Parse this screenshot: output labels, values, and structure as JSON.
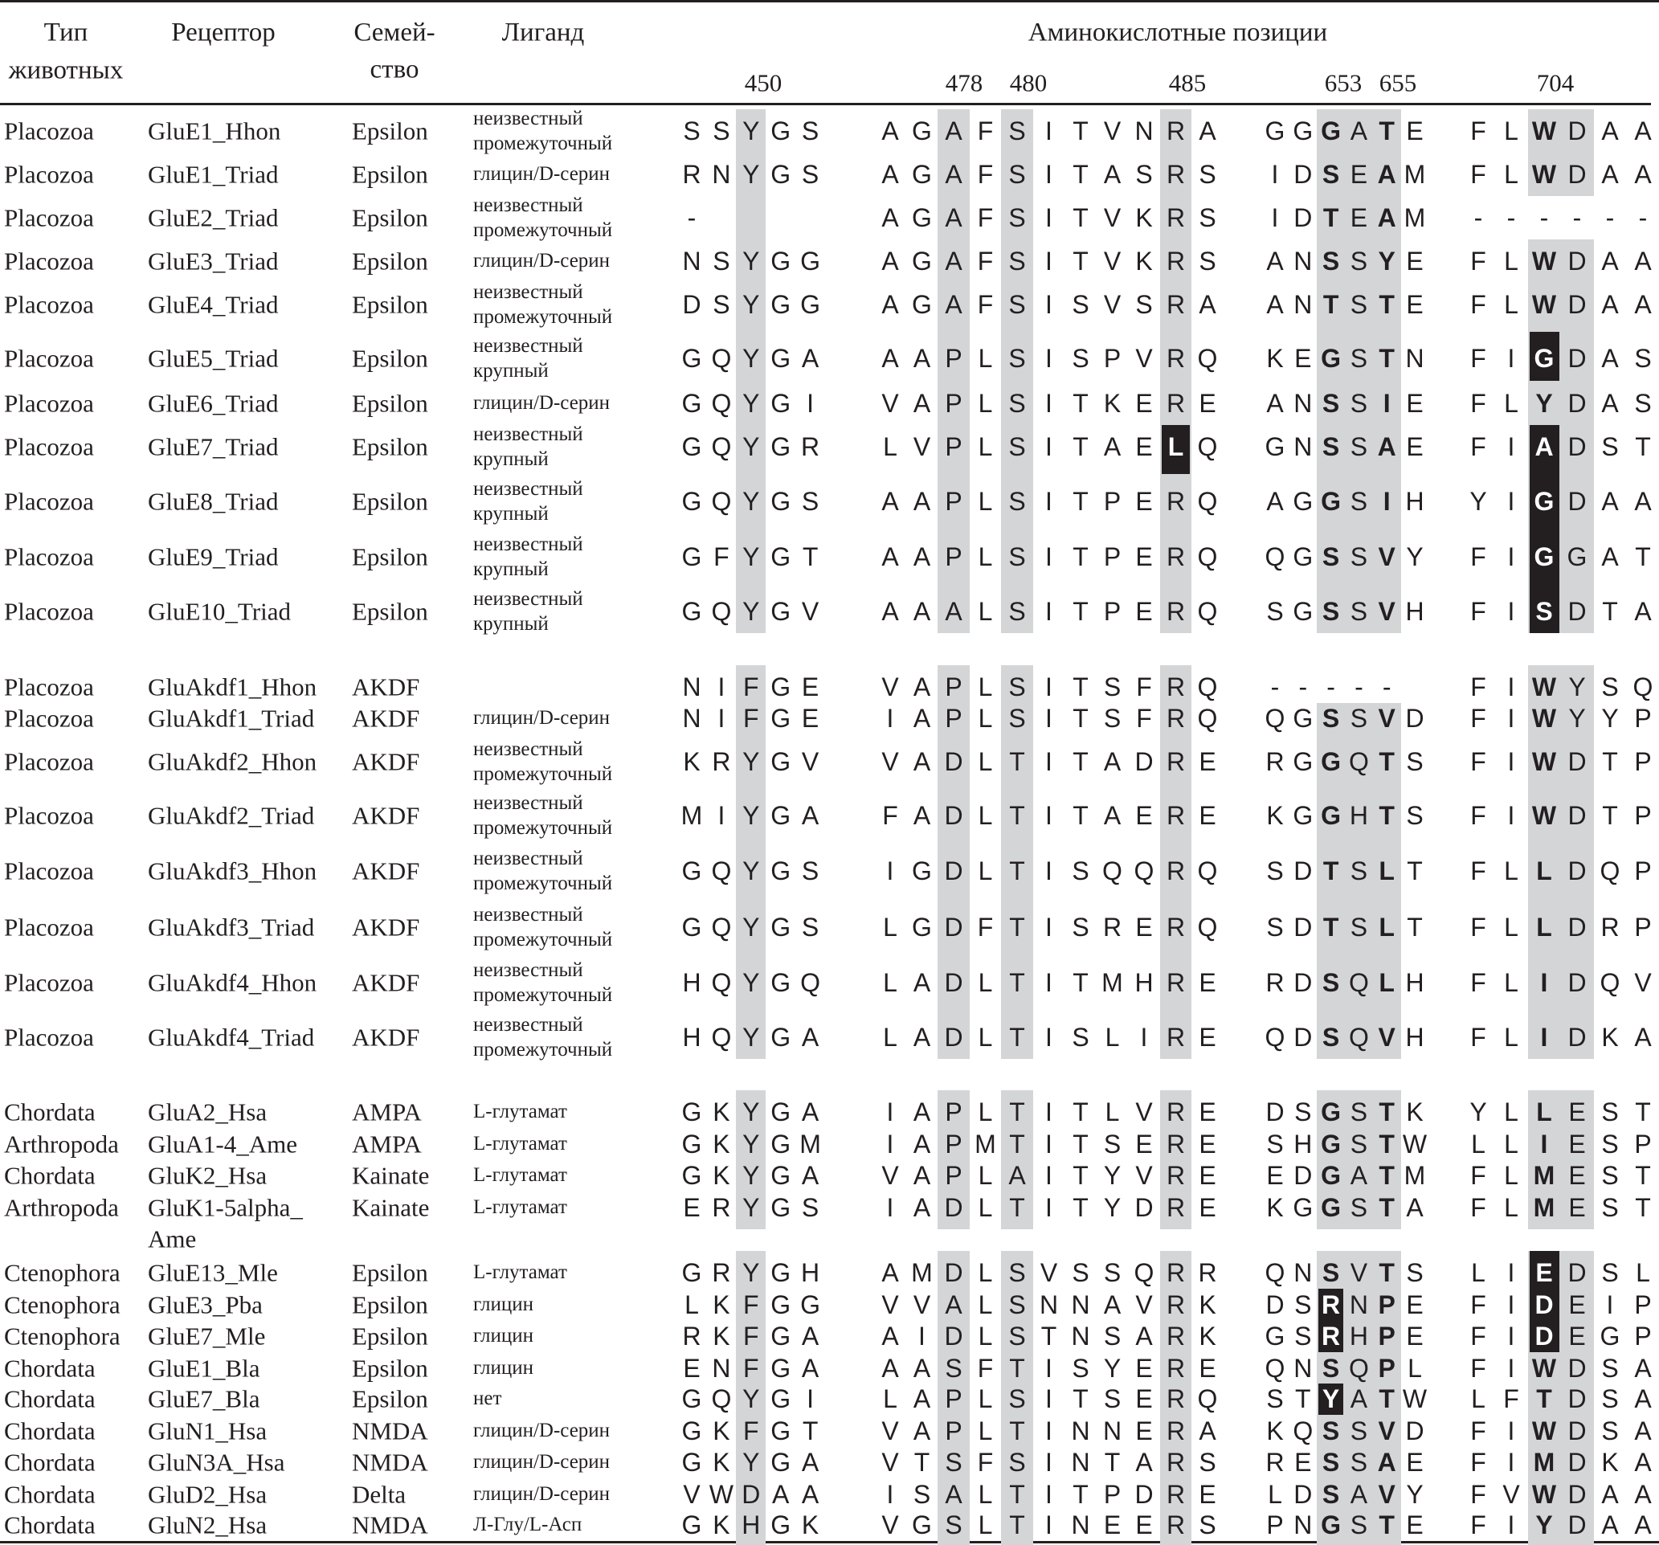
{
  "header": {
    "animal_line1": "Тип",
    "animal_line2": "животных",
    "receptor": "Рецептор",
    "family_line1": "Семей-",
    "family_line2": "ство",
    "ligand": "Лиганд",
    "positions_title": "Аминокислотные позиции",
    "positions": [
      "450",
      "478",
      "480",
      "485",
      "653",
      "655",
      "704"
    ]
  },
  "colors": {
    "shade": "#d4d5d7",
    "highlight": "#231f20",
    "text": "#231f20"
  },
  "rows": [
    {
      "animal": "Placozoa",
      "receptor": "GluE1_Hhon",
      "family": "Epsilon",
      "ligand": [
        "неизвестный",
        "промежуточный"
      ],
      "seq": [
        "SSYGS",
        "AGAFSITVNRA",
        "GGGATE",
        "FLWDAA"
      ],
      "highlight": []
    },
    {
      "animal": "Placozoa",
      "receptor": "GluE1_Triad",
      "family": "Epsilon",
      "ligand": [
        "глицин/D-серин"
      ],
      "seq": [
        "RNYGS",
        "AGAFSITASRS",
        "IDSEAM",
        "FLWDAA"
      ],
      "highlight": []
    },
    {
      "animal": "Placozoa",
      "receptor": "GluE2_Triad",
      "family": "Epsilon",
      "ligand": [
        "неизвестный",
        "промежуточный"
      ],
      "seq": [
        "-",
        "AGAFSITVKRS",
        "IDTEAM",
        "------"
      ],
      "highlight": []
    },
    {
      "animal": "Placozoa",
      "receptor": "GluE3_Triad",
      "family": "Epsilon",
      "ligand": [
        "глицин/D-серин"
      ],
      "seq": [
        "NSYGG",
        "AGAFSITVKRS",
        "ANSSYE",
        "FLWDAA"
      ],
      "highlight": []
    },
    {
      "animal": "Placozoa",
      "receptor": "GluE4_Triad",
      "family": "Epsilon",
      "ligand": [
        "неизвестный",
        "промежуточный"
      ],
      "seq": [
        "DSYGG",
        "AGAFSISVSRA",
        "ANTSTE",
        "FLWDAA"
      ],
      "highlight": []
    },
    {
      "animal": "Placozoa",
      "receptor": "GluE5_Triad",
      "family": "Epsilon",
      "ligand": [
        "неизвестный",
        "крупный"
      ],
      "seq": [
        "GQYGA",
        "AAPLSISPVRQ",
        "KEGSTN",
        "FIGDAS"
      ],
      "highlight": [
        [
          3,
          2
        ]
      ]
    },
    {
      "animal": "Placozoa",
      "receptor": "GluE6_Triad",
      "family": "Epsilon",
      "ligand": [
        "глицин/D-серин"
      ],
      "seq": [
        "GQYGI",
        "VAPLSITKERE",
        "ANSSIE",
        "FLYDAS"
      ],
      "highlight": []
    },
    {
      "animal": "Placozoa",
      "receptor": "GluE7_Triad",
      "family": "Epsilon",
      "ligand": [
        "неизвестный",
        "крупный"
      ],
      "seq": [
        "GQYGR",
        "LVPLSITAELQ",
        "GNSSAE",
        "FIADST"
      ],
      "highlight": [
        [
          1,
          9
        ],
        [
          3,
          2
        ]
      ]
    },
    {
      "animal": "Placozoa",
      "receptor": "GluE8_Triad",
      "family": "Epsilon",
      "ligand": [
        "неизвестный",
        "крупный"
      ],
      "seq": [
        "GQYGS",
        "AAPLSITPERQ",
        "AGGSIH",
        "YIGDAA"
      ],
      "highlight": [
        [
          3,
          2
        ]
      ]
    },
    {
      "animal": "Placozoa",
      "receptor": "GluE9_Triad",
      "family": "Epsilon",
      "ligand": [
        "неизвестный",
        "крупный"
      ],
      "seq": [
        "GFYGT",
        "AAPLSITPERQ",
        "QGSSVY",
        "FIGGAT"
      ],
      "highlight": [
        [
          3,
          2
        ]
      ]
    },
    {
      "animal": "Placozoa",
      "receptor": "GluE10_Triad",
      "family": "Epsilon",
      "ligand": [
        "неизвестный",
        "крупный"
      ],
      "seq": [
        "GQYGV",
        "AAALSITPERQ",
        "SGSSVH",
        "FISDTA"
      ],
      "highlight": [
        [
          3,
          2
        ]
      ]
    },
    {
      "animal": "Placozoa",
      "receptor": "GluAkdf1_Hhon",
      "family": "AKDF",
      "ligand": [],
      "seq": [
        "NIFGE",
        "VAPLSITSFRQ",
        "-----",
        "FIWYSQ"
      ],
      "highlight": []
    },
    {
      "animal": "Placozoa",
      "receptor": "GluAkdf1_Triad",
      "family": "AKDF",
      "ligand": [
        "глицин/D-серин"
      ],
      "seq": [
        "NIFGE",
        "IAPLSITSFRQ",
        "QGSSVD",
        "FIWYYP"
      ],
      "highlight": []
    },
    {
      "animal": "Placozoa",
      "receptor": "GluAkdf2_Hhon",
      "family": "AKDF",
      "ligand": [
        "неизвестный",
        "промежуточный"
      ],
      "seq": [
        "KRYGV",
        "VADLTITADRE",
        "RGGQTS",
        "FIWDTP"
      ],
      "highlight": []
    },
    {
      "animal": "Placozoa",
      "receptor": "GluAkdf2_Triad",
      "family": "AKDF",
      "ligand": [
        "неизвестный",
        "промежуточный"
      ],
      "seq": [
        "MIYGA",
        "FADLTITAERE",
        "KGGHTS",
        "FIWDTP"
      ],
      "highlight": []
    },
    {
      "animal": "Placozoa",
      "receptor": "GluAkdf3_Hhon",
      "family": "AKDF",
      "ligand": [
        "неизвестный",
        "промежуточный"
      ],
      "seq": [
        "GQYGS",
        "IGDLTISQQRQ",
        "SDTSLT",
        "FLLDQP"
      ],
      "highlight": []
    },
    {
      "animal": "Placozoa",
      "receptor": "GluAkdf3_Triad",
      "family": "AKDF",
      "ligand": [
        "неизвестный",
        "промежуточный"
      ],
      "seq": [
        "GQYGS",
        "LGDFTISRERQ",
        "SDTSLT",
        "FLLDRP"
      ],
      "highlight": []
    },
    {
      "animal": "Placozoa",
      "receptor": "GluAkdf4_Hhon",
      "family": "AKDF",
      "ligand": [
        "неизвестный",
        "промежуточный"
      ],
      "seq": [
        "HQYGQ",
        "LADLTITMHRE",
        "RDSQLH",
        "FLIDQV"
      ],
      "highlight": []
    },
    {
      "animal": "Placozoa",
      "receptor": "GluAkdf4_Triad",
      "family": "AKDF",
      "ligand": [
        "неизвестный",
        "промежуточный"
      ],
      "seq": [
        "HQYGA",
        "LADLTISLIRE",
        "QDSQVH",
        "FLIDKA"
      ],
      "highlight": []
    },
    {
      "animal": "Chordata",
      "receptor": "GluA2_Hsa",
      "family": "AMPA",
      "ligand": [
        "L-глутамат"
      ],
      "seq": [
        "GKYGA",
        "IAPLTITLVRE",
        "DSGSTK",
        "YLLEST"
      ],
      "highlight": []
    },
    {
      "animal": "Arthropoda",
      "receptor": "GluA1-4_Ame",
      "family": "AMPA",
      "ligand": [
        "L-глутамат"
      ],
      "seq": [
        "GKYGM",
        "IAPMTITSERE",
        "SHGSTW",
        "LLIESP"
      ],
      "highlight": []
    },
    {
      "animal": "Chordata",
      "receptor": "GluK2_Hsa",
      "family": "Kainate",
      "ligand": [
        "L-глутамат"
      ],
      "seq": [
        "GKYGA",
        "VAPLAITYVRE",
        "EDGATM",
        "FLMEST"
      ],
      "highlight": []
    },
    {
      "animal": "Arthropoda",
      "receptor": "GluK1-5alpha_",
      "receptor_cont": "Ame",
      "family": "Kainate",
      "ligand": [
        "L-глутамат"
      ],
      "seq": [
        "ERYGS",
        "IADLTITYDRE",
        "KGGSTA",
        "FLMEST"
      ],
      "highlight": []
    },
    {
      "animal": "Ctenophora",
      "receptor": "GluE13_Mle",
      "family": "Epsilon",
      "ligand": [
        "L-глутамат"
      ],
      "seq": [
        "GRYGH",
        "AMDLSVSSQRR",
        "QNSVTS",
        "LIEDSL"
      ],
      "highlight": [
        [
          3,
          2
        ]
      ]
    },
    {
      "animal": "Ctenophora",
      "receptor": "GluE3_Pba",
      "family": "Epsilon",
      "ligand": [
        "глицин"
      ],
      "seq": [
        "LKFGG",
        "VVALSNNAVRK",
        "DSRNPE",
        "FIDEIP"
      ],
      "highlight": [
        [
          2,
          2
        ],
        [
          3,
          2
        ]
      ]
    },
    {
      "animal": "Ctenophora",
      "receptor": "GluE7_Mle",
      "family": "Epsilon",
      "ligand": [
        "глицин"
      ],
      "seq": [
        "RKFGA",
        "AIDLSTNSARK",
        "GSRHPE",
        "FIDEGP"
      ],
      "highlight": [
        [
          2,
          2
        ],
        [
          3,
          2
        ]
      ]
    },
    {
      "animal": "Chordata",
      "receptor": "GluE1_Bla",
      "family": "Epsilon",
      "ligand": [
        "глицин"
      ],
      "seq": [
        "ENFGA",
        "AASFTISYERE",
        "QNSQPL",
        "FIWDSA"
      ],
      "highlight": []
    },
    {
      "animal": "Chordata",
      "receptor": "GluE7_Bla",
      "family": "Epsilon",
      "ligand": [
        "нет"
      ],
      "seq": [
        "GQYGI",
        "LAPLSITSERQ",
        "STYATW",
        "LFTDSA"
      ],
      "highlight": [
        [
          2,
          2
        ]
      ]
    },
    {
      "animal": "Chordata",
      "receptor": "GluN1_Hsa",
      "family": "NMDA",
      "ligand": [
        "глицин/D-серин"
      ],
      "seq": [
        "GKFGT",
        "VAPLTINNERA",
        "KQSSVD",
        "FIWDSA"
      ],
      "highlight": []
    },
    {
      "animal": "Chordata",
      "receptor": "GluN3A_Hsa",
      "family": "NMDA",
      "ligand": [
        "глицин/D-серин"
      ],
      "seq": [
        "GKYGA",
        "VTSFSINTARS",
        "RESSAE",
        "FIMDKA"
      ],
      "highlight": []
    },
    {
      "animal": "Chordata",
      "receptor": "GluD2_Hsa",
      "family": "Delta",
      "ligand": [
        "глицин/D-серин"
      ],
      "seq": [
        "VWDAA",
        "ISALTITPDRE",
        "LDSAVY",
        "FVWDAA"
      ],
      "highlight": []
    },
    {
      "animal": "Chordata",
      "receptor": "GluN2_Hsa",
      "family": "NMDA",
      "ligand": [
        "Л-Глу/L-Асп"
      ],
      "seq": [
        "GKHGK",
        "VGSLTINEERS",
        "PNGSTE",
        "FIYDAA"
      ],
      "highlight": []
    }
  ]
}
